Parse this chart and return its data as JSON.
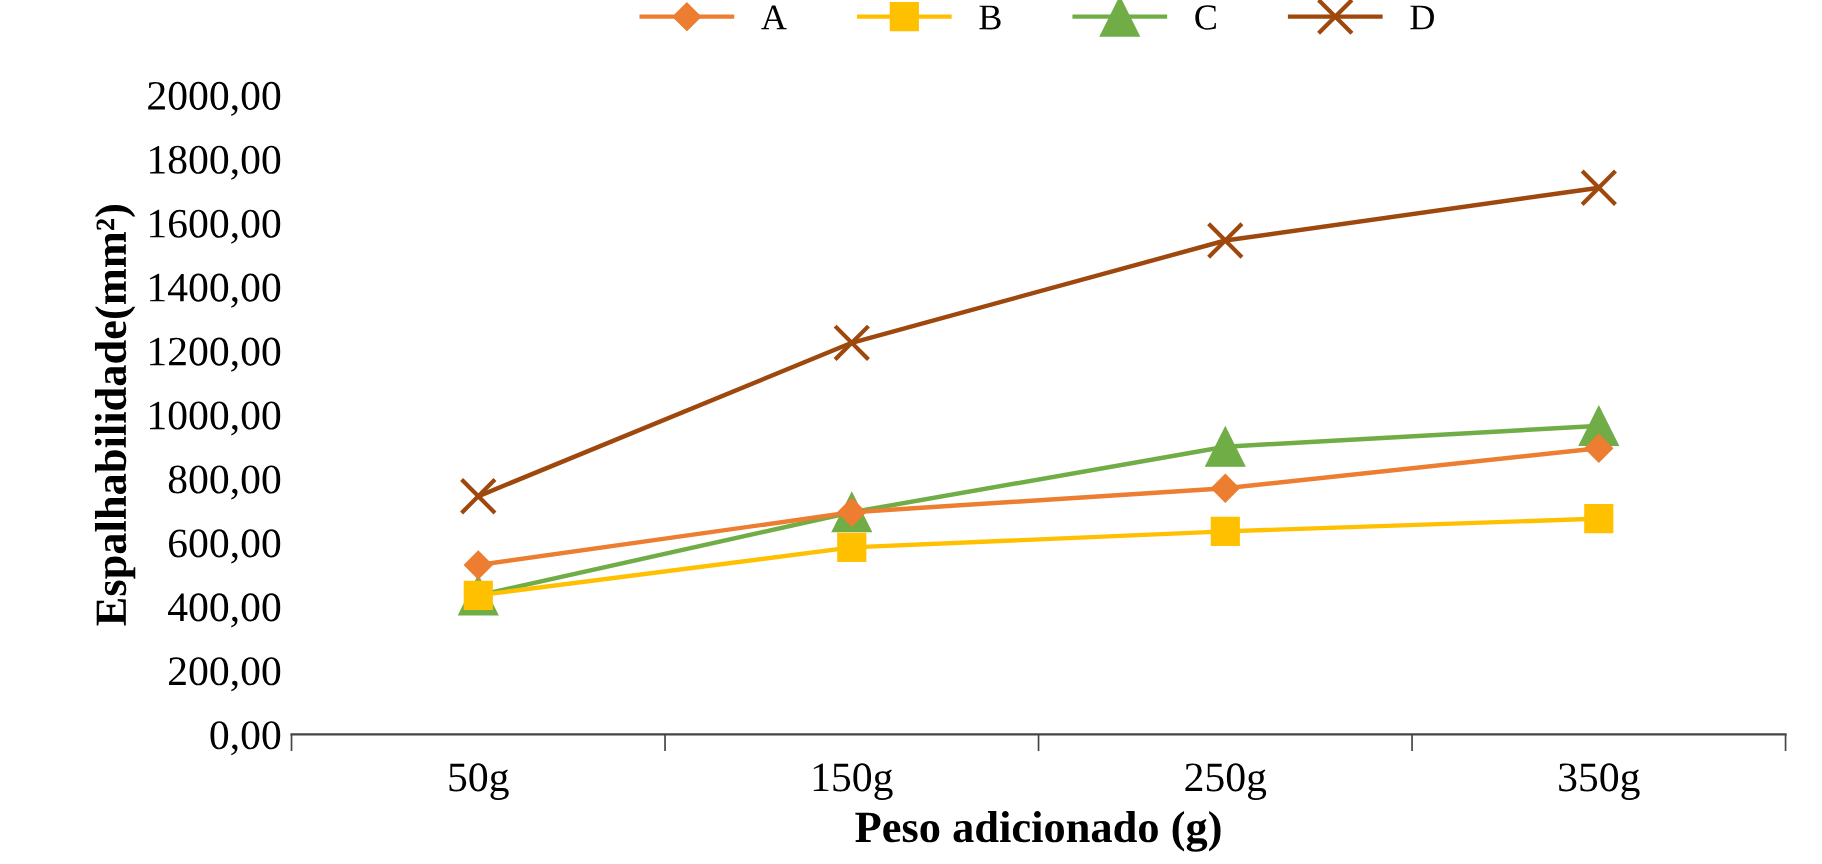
{
  "chart_data": {
    "type": "line",
    "xlabel": "Peso adicionado (g)",
    "ylabel": "Espalhabilidade(mm²)",
    "categories": [
      "50g",
      "150g",
      "250g",
      "350g"
    ],
    "series": [
      {
        "name": "A",
        "color": "#ed7d31",
        "marker": "diamond",
        "values": [
          530,
          695,
          770,
          895
        ]
      },
      {
        "name": "B",
        "color": "#ffc000",
        "marker": "square",
        "values": [
          435,
          585,
          635,
          675
        ]
      },
      {
        "name": "C",
        "color": "#70ad47",
        "marker": "triangle",
        "values": [
          435,
          695,
          900,
          965
        ]
      },
      {
        "name": "D",
        "color": "#9e480e",
        "marker": "cross",
        "values": [
          745,
          1225,
          1545,
          1710
        ]
      }
    ],
    "ylim": [
      0,
      2000
    ],
    "yticks": [
      {
        "value": 0,
        "label": "0,00"
      },
      {
        "value": 200,
        "label": "200,00"
      },
      {
        "value": 400,
        "label": "400,00"
      },
      {
        "value": 600,
        "label": "600,00"
      },
      {
        "value": 800,
        "label": "800,00"
      },
      {
        "value": 1000,
        "label": "1000,00"
      },
      {
        "value": 1200,
        "label": "1200,00"
      },
      {
        "value": 1400,
        "label": "1400,00"
      },
      {
        "value": 1600,
        "label": "1600,00"
      },
      {
        "value": 1800,
        "label": "1800,00"
      },
      {
        "value": 2000,
        "label": "2000,00"
      }
    ],
    "grid": false,
    "legend": "top"
  }
}
